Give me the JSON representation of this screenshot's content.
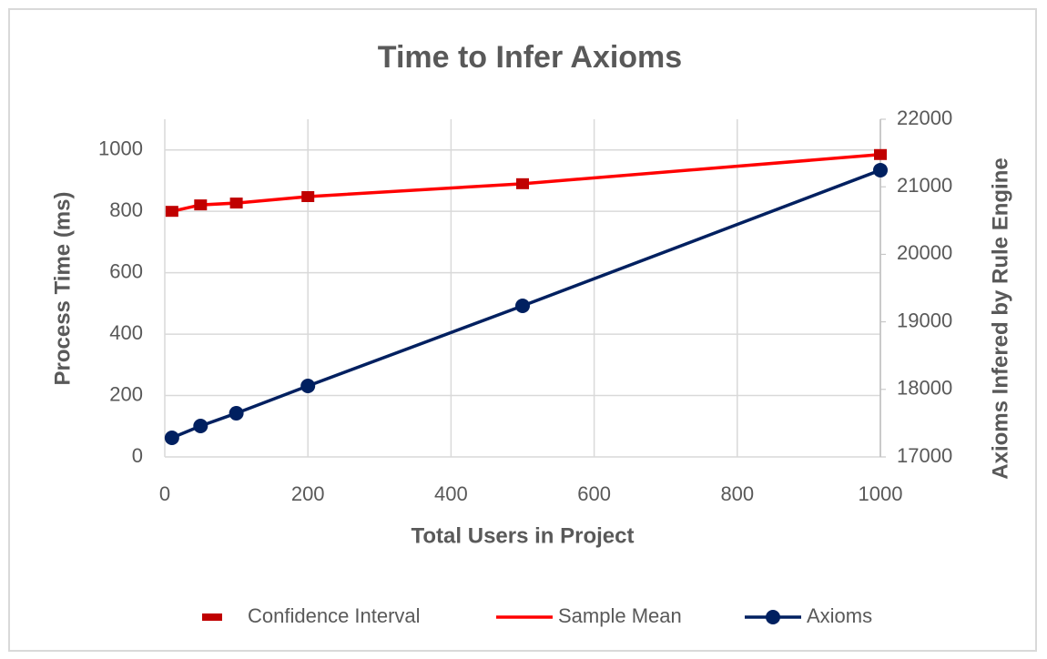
{
  "chart_data": {
    "type": "line",
    "title": "Time to Infer Axioms",
    "x_label": "Total Users in Project",
    "y_label": "Process Time (ms)",
    "y2_label": "Axioms Infered by Rule Engine",
    "x": [
      10,
      50,
      100,
      200,
      500,
      1000
    ],
    "xlim": [
      0,
      1000
    ],
    "xticks": [
      0,
      200,
      400,
      600,
      800,
      1000
    ],
    "ylim": [
      0,
      1100
    ],
    "yticks": [
      0,
      200,
      400,
      600,
      800,
      1000
    ],
    "y2lim": [
      17000,
      22000
    ],
    "y2ticks": [
      17000,
      18000,
      19000,
      20000,
      21000,
      22000
    ],
    "grid": true,
    "legend": "bottom",
    "series": [
      {
        "name": "Confidence Interval",
        "color": "#c00000",
        "marker": "square",
        "line": false,
        "values": [
          800,
          821,
          827,
          848,
          890,
          985
        ]
      },
      {
        "name": "Sample Mean",
        "color": "#ff0000",
        "marker": "none",
        "line": true,
        "values": [
          800,
          821,
          827,
          848,
          890,
          985
        ]
      },
      {
        "name": "Axioms",
        "color": "#002060",
        "marker": "circle",
        "line": true,
        "axis": "y2",
        "values": [
          17283,
          17458,
          17647,
          18051,
          19237,
          21246
        ]
      }
    ]
  }
}
